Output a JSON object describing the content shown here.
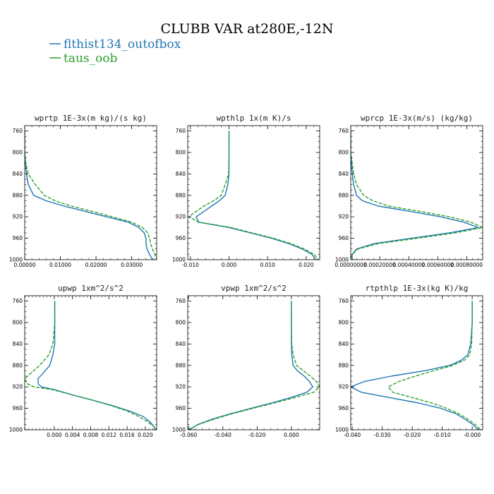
{
  "title": "CLUBB VAR at280E,-12N",
  "legend": [
    {
      "label": "flthist134_outofbox",
      "color": "#1f77b4",
      "dash": "solid"
    },
    {
      "label": "taus_oob",
      "color": "#2ca02c",
      "dash": "dashed"
    }
  ],
  "chart_data": [
    {
      "type": "line",
      "title": "wprtp  1E-3x(m kg)/(s kg)",
      "xlim": [
        0.0,
        0.037
      ],
      "ylim": [
        1000,
        750
      ],
      "x_ticks": [
        0.0,
        0.01,
        0.02,
        0.03
      ],
      "x_tick_labels": [
        "0.00000",
        "0.01000",
        "0.02000",
        "0.03000"
      ],
      "y_ticks": [
        760,
        800,
        840,
        880,
        920,
        960,
        1000
      ],
      "y": [
        760,
        800,
        820,
        840,
        860,
        880,
        890,
        900,
        910,
        920,
        930,
        940,
        950,
        960,
        970,
        980,
        990,
        1000
      ],
      "series": [
        {
          "name": "flthist134_outofbox",
          "x": [
            0,
            0,
            0.0002,
            0.0005,
            0.001,
            0.0025,
            0.006,
            0.011,
            0.017,
            0.023,
            0.029,
            0.032,
            0.0335,
            0.034,
            0.034,
            0.0343,
            0.035,
            0.0358
          ]
        },
        {
          "name": "taus_oob",
          "x": [
            0,
            0,
            0.0003,
            0.001,
            0.003,
            0.0055,
            0.0085,
            0.013,
            0.019,
            0.0245,
            0.03,
            0.033,
            0.0345,
            0.035,
            0.0353,
            0.0358,
            0.0365,
            0.037
          ]
        }
      ]
    },
    {
      "type": "line",
      "title": "wpthlp  1x(m K)/s",
      "xlim": [
        -0.0107,
        0.0235
      ],
      "ylim": [
        1000,
        750
      ],
      "x_ticks": [
        -0.01,
        0.0,
        0.01,
        0.02
      ],
      "x_tick_labels": [
        "-0.010",
        "0.000",
        "0.010",
        "0.020"
      ],
      "y_ticks": [
        760,
        800,
        840,
        880,
        920,
        960,
        1000
      ],
      "y": [
        760,
        800,
        840,
        860,
        880,
        890,
        900,
        910,
        920,
        925,
        930,
        935,
        940,
        950,
        960,
        970,
        980,
        990,
        1000
      ],
      "series": [
        {
          "name": "flthist134_outofbox",
          "x": [
            0,
            0,
            0,
            -0.0003,
            -0.001,
            -0.0025,
            -0.0045,
            -0.0065,
            -0.0085,
            -0.0082,
            -0.0078,
            -0.004,
            0.0,
            0.0055,
            0.011,
            0.0155,
            0.019,
            0.0215,
            0.0225
          ]
        },
        {
          "name": "taus_oob",
          "x": [
            0,
            0,
            -0.0001,
            -0.001,
            -0.002,
            -0.004,
            -0.0065,
            -0.0085,
            -0.0105,
            -0.009,
            -0.008,
            -0.0035,
            0.0005,
            0.006,
            0.0115,
            0.016,
            0.0195,
            0.022,
            0.0232
          ]
        }
      ]
    },
    {
      "type": "line",
      "title": "wprcp  1E-3x(m/s) (kg/kg)",
      "xlim": [
        0.0,
        0.00091
      ],
      "ylim": [
        1000,
        750
      ],
      "x_ticks": [
        0.0,
        0.0002,
        0.0004,
        0.0006,
        0.0008
      ],
      "x_tick_labels": [
        "0.00000000",
        "0.00020000",
        "0.00040000",
        "0.00060000",
        "0.00080000"
      ],
      "y_ticks": [
        760,
        800,
        840,
        880,
        920,
        960,
        1000
      ],
      "y": [
        760,
        800,
        820,
        840,
        860,
        880,
        890,
        900,
        910,
        920,
        930,
        940,
        950,
        960,
        970,
        980,
        990,
        1000
      ],
      "series": [
        {
          "name": "flthist134_outofbox",
          "x": [
            0,
            0,
            5e-06,
            1e-05,
            2e-05,
            4e-05,
            8e-05,
            0.00019,
            0.00041,
            0.00062,
            0.00078,
            0.00088,
            0.00068,
            0.00042,
            0.00016,
            4e-05,
            1e-05,
            1e-05
          ]
        },
        {
          "name": "taus_oob",
          "x": [
            0,
            0,
            1e-05,
            2e-05,
            4e-05,
            9e-05,
            0.00015,
            0.00026,
            0.00048,
            0.00068,
            0.00083,
            0.00091,
            0.00072,
            0.00046,
            0.00019,
            5e-05,
            1e-05,
            0
          ]
        }
      ]
    },
    {
      "type": "line",
      "title": "upwp  1xm^2/s^2",
      "xlim": [
        -0.0065,
        0.0225
      ],
      "ylim": [
        1000,
        750
      ],
      "x_ticks": [
        0.0,
        0.004,
        0.008,
        0.012,
        0.016,
        0.02
      ],
      "x_tick_labels": [
        "0.000",
        "0.004",
        "0.008",
        "0.012",
        "0.016",
        "0.020"
      ],
      "y_ticks": [
        760,
        800,
        840,
        880,
        920,
        960,
        1000
      ],
      "y": [
        760,
        800,
        840,
        860,
        880,
        895,
        905,
        915,
        920,
        925,
        935,
        945,
        955,
        965,
        975,
        985,
        995,
        1000
      ],
      "series": [
        {
          "name": "flthist134_outofbox",
          "x": [
            0.0001,
            0.0001,
            0.0001,
            -0.0003,
            -0.001,
            -0.0025,
            -0.0036,
            -0.0035,
            -0.0028,
            0.0,
            0.004,
            0.0085,
            0.0128,
            0.0165,
            0.0195,
            0.021,
            0.022,
            0.0222
          ]
        },
        {
          "name": "taus_oob",
          "x": [
            0.0001,
            0.0001,
            -0.0003,
            -0.0012,
            -0.0032,
            -0.0052,
            -0.0065,
            -0.0058,
            -0.0045,
            -0.0005,
            0.004,
            0.0085,
            0.0125,
            0.016,
            0.0185,
            0.0205,
            0.022,
            0.0225
          ]
        }
      ]
    },
    {
      "type": "line",
      "title": "vpwp  1xm^2/s^2",
      "xlim": [
        -0.0605,
        0.0165
      ],
      "ylim": [
        1000,
        750
      ],
      "x_ticks": [
        -0.06,
        -0.04,
        -0.02,
        0.0
      ],
      "x_tick_labels": [
        "-0.060",
        "-0.040",
        "-0.020",
        "0.000"
      ],
      "y_ticks": [
        760,
        800,
        840,
        880,
        920,
        960,
        1000
      ],
      "y": [
        760,
        800,
        840,
        860,
        880,
        890,
        900,
        910,
        920,
        930,
        940,
        950,
        960,
        970,
        980,
        990,
        1000
      ],
      "series": [
        {
          "name": "flthist134_outofbox",
          "x": [
            0,
            0,
            0,
            0.0002,
            0.001,
            0.0035,
            0.0075,
            0.0105,
            0.0125,
            0.009,
            -0.0005,
            -0.0115,
            -0.0235,
            -0.0355,
            -0.046,
            -0.0545,
            -0.0595
          ]
        },
        {
          "name": "taus_oob",
          "x": [
            0,
            0,
            0.0002,
            0.001,
            0.003,
            0.007,
            0.011,
            0.0145,
            0.0165,
            0.013,
            0.002,
            -0.01,
            -0.0225,
            -0.0345,
            -0.045,
            -0.054,
            -0.0605
          ]
        }
      ]
    },
    {
      "type": "line",
      "title": "rtpthlp  1E-3x(kg K)/kg",
      "xlim": [
        -0.0405,
        0.0035
      ],
      "ylim": [
        1000,
        750
      ],
      "x_ticks": [
        -0.04,
        -0.03,
        -0.02,
        -0.01,
        0.0
      ],
      "x_tick_labels": [
        "-0.040",
        "-0.030",
        "-0.020",
        "-0.010",
        "-0.000"
      ],
      "y_ticks": [
        760,
        800,
        840,
        880,
        920,
        960,
        1000
      ],
      "y": [
        760,
        800,
        840,
        860,
        870,
        880,
        890,
        900,
        910,
        920,
        930,
        940,
        950,
        960,
        970,
        980,
        990,
        1000
      ],
      "series": [
        {
          "name": "flthist134_outofbox",
          "x": [
            0,
            0,
            -0.0005,
            -0.0015,
            -0.0035,
            -0.0075,
            -0.016,
            -0.027,
            -0.036,
            -0.0405,
            -0.037,
            -0.0275,
            -0.018,
            -0.0105,
            -0.0055,
            -0.0025,
            0.0002,
            0.002
          ]
        },
        {
          "name": "taus_oob",
          "x": [
            0,
            0,
            -0.0002,
            -0.0008,
            -0.0025,
            -0.0065,
            -0.013,
            -0.019,
            -0.0245,
            -0.028,
            -0.0265,
            -0.02,
            -0.0135,
            -0.0085,
            -0.0045,
            -0.0015,
            0.001,
            0.0028
          ]
        }
      ]
    }
  ]
}
